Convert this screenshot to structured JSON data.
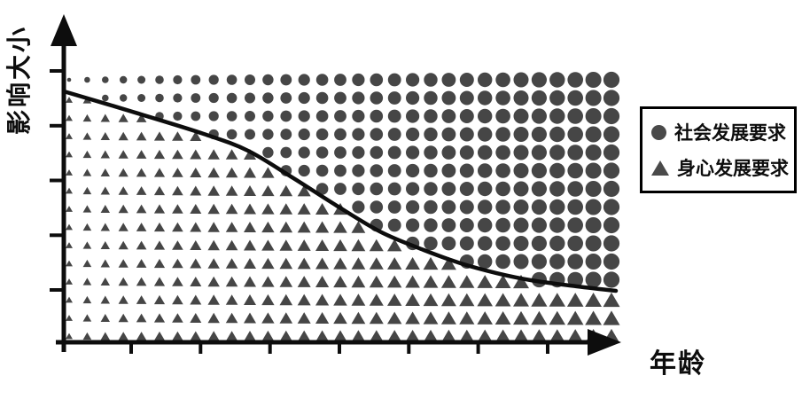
{
  "chart_data": {
    "type": "scatter",
    "title": "",
    "xlabel": "年龄",
    "ylabel": "影响大小",
    "axes": {
      "color": "#0d0d0d",
      "x_tick_count": 7,
      "y_tick_count": 5,
      "numeric_tick_labels": false
    },
    "legend": [
      {
        "marker": "circle",
        "label": "社会发展要求"
      },
      {
        "marker": "triangle",
        "label": "身心发展要求"
      }
    ],
    "legend_position": "right",
    "curve": {
      "color": "#0d0d0d",
      "meaning": "boundary: influence shifts from physical-mental to social development demands with age",
      "points_frac": [
        [
          0.0,
          0.83
        ],
        [
          0.125,
          0.762
        ],
        [
          0.254,
          0.689
        ],
        [
          0.334,
          0.633
        ],
        [
          0.414,
          0.545
        ],
        [
          0.494,
          0.452
        ],
        [
          0.575,
          0.364
        ],
        [
          0.652,
          0.305
        ],
        [
          0.719,
          0.261
        ],
        [
          0.783,
          0.229
        ],
        [
          0.847,
          0.205
        ],
        [
          0.928,
          0.185
        ],
        [
          1.0,
          0.17
        ]
      ]
    },
    "markers": {
      "color": "#464646",
      "grid_columns": 31,
      "grid_rows": 15,
      "above_curve": "circle",
      "below_curve": "triangle",
      "circle_diameter_min": 4.6,
      "circle_diameter_max": 18.2,
      "triangle_width_min": 8,
      "triangle_width_max": 19,
      "size_growth_exponent": 0.55,
      "size_trend": "marker size increases from left (young) to right (old)"
    }
  }
}
